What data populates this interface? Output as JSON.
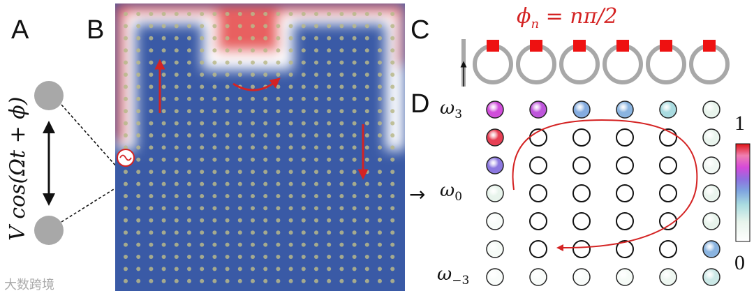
{
  "labels": {
    "a": "A",
    "b": "B",
    "c": "C",
    "d": "D"
  },
  "panel_a": {
    "drive_label": "V cos(Ωt + ϕ)"
  },
  "panel_c": {
    "phase_label": "ϕ",
    "phase_sub": "n",
    "phase_rhs": " = nπ/2",
    "ring_count": 6
  },
  "panel_d": {
    "omega_top": "ω",
    "omega_top_sub": "3",
    "omega_mid": "ω",
    "omega_mid_sub": "0",
    "omega_bot": "ω",
    "omega_bot_sub": "−3",
    "arrow": "→",
    "colorbar_max": "1",
    "colorbar_min": "0",
    "grid_values": [
      [
        0.75,
        0.72,
        0.5,
        0.48,
        0.38,
        0.2
      ],
      [
        0.95,
        0.0,
        0.0,
        0.0,
        0.0,
        0.18
      ],
      [
        0.62,
        0.0,
        0.0,
        0.0,
        0.0,
        0.12
      ],
      [
        0.2,
        0.0,
        0.0,
        0.0,
        0.0,
        0.18
      ],
      [
        0.06,
        0.0,
        0.0,
        0.0,
        0.0,
        0.2
      ],
      [
        0.08,
        0.0,
        0.0,
        0.0,
        0.0,
        0.48
      ],
      [
        0.05,
        0.05,
        0.05,
        0.08,
        0.15,
        0.28
      ]
    ]
  },
  "colors": {
    "accent": "#d42323",
    "field_bg": "#3a5aa6",
    "dot": "#b8b88a",
    "gray": "#a8a8a8"
  },
  "watermark": "大数跨境"
}
